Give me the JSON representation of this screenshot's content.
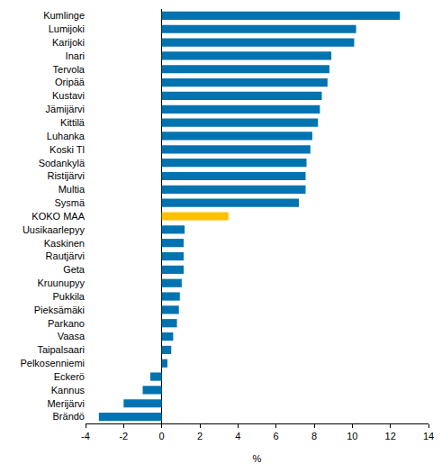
{
  "chart_data": {
    "type": "bar",
    "orientation": "horizontal",
    "x_label": "%",
    "categories": [
      "Kumlinge",
      "Lumijoki",
      "Karijoki",
      "Inari",
      "Tervola",
      "Oripää",
      "Kustavi",
      "Jämijärvi",
      "Kittilä",
      "Luhanka",
      "Koski Tl",
      "Sodankylä",
      "Ristijärvi",
      "Multia",
      "Sysmä",
      "KOKO MAA",
      "Uusikaarlepyy",
      "Kaskinen",
      "Rautjärvi",
      "Geta",
      "Kruunupyy",
      "Pukkila",
      "Pieksämäki",
      "Parkano",
      "Vaasa",
      "Taipalsaari",
      "Pelkosenniemi",
      "Eckerö",
      "Kannus",
      "Merijärvi",
      "Brändö"
    ],
    "values": [
      12.5,
      10.2,
      10.1,
      8.9,
      8.8,
      8.7,
      8.4,
      8.3,
      8.2,
      7.9,
      7.8,
      7.6,
      7.55,
      7.55,
      7.2,
      3.5,
      1.2,
      1.15,
      1.15,
      1.15,
      1.05,
      0.95,
      0.9,
      0.8,
      0.6,
      0.5,
      0.3,
      -0.6,
      -1.0,
      -2.0,
      -3.3
    ],
    "colors": [
      "#0073b0",
      "#0073b0",
      "#0073b0",
      "#0073b0",
      "#0073b0",
      "#0073b0",
      "#0073b0",
      "#0073b0",
      "#0073b0",
      "#0073b0",
      "#0073b0",
      "#0073b0",
      "#0073b0",
      "#0073b0",
      "#0073b0",
      "#ffc000",
      "#0073b0",
      "#0073b0",
      "#0073b0",
      "#0073b0",
      "#0073b0",
      "#0073b0",
      "#0073b0",
      "#0073b0",
      "#0073b0",
      "#0073b0",
      "#0073b0",
      "#0073b0",
      "#0073b0",
      "#0073b0",
      "#0073b0"
    ],
    "xlim": [
      -4,
      14
    ],
    "xticks": [
      -4,
      -2,
      0,
      2,
      4,
      6,
      8,
      10,
      12,
      14
    ],
    "grid": false
  }
}
